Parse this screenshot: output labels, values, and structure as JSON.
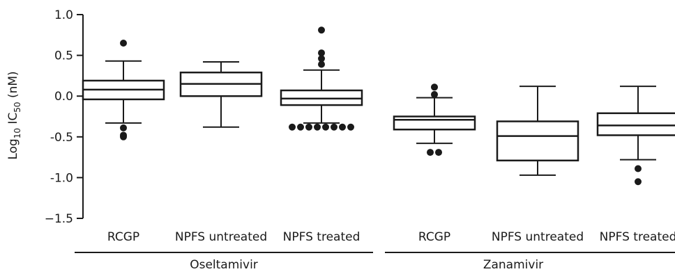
{
  "chart_data": {
    "type": "box",
    "ylabel_main": "Log",
    "ylabel_sub": "10",
    "ylabel_ic": " IC",
    "ylabel_ic_sub": "50",
    "ylabel_unit": " (nM)",
    "ylim": [
      -1.5,
      1.0
    ],
    "yticks": [
      {
        "value": 1.0,
        "label": "1.0"
      },
      {
        "value": 0.5,
        "label": "0.5"
      },
      {
        "value": 0.0,
        "label": "0.0"
      },
      {
        "value": -0.5,
        "label": "-0.5"
      },
      {
        "value": -1.0,
        "label": "-1.0"
      },
      {
        "value": -1.5,
        "label": "−1.5"
      }
    ],
    "groups": [
      {
        "label": "Oseltamivir",
        "categories": [
          "RCGP",
          "NPFS untreated",
          "NPFS treated"
        ]
      },
      {
        "label": "Zanamivir",
        "categories": [
          "RCGP",
          "NPFS untreated",
          "NPFS treated"
        ]
      }
    ],
    "boxes": [
      {
        "group": "Oseltamivir",
        "category": "RCGP",
        "min": -0.33,
        "q1": -0.04,
        "median": 0.08,
        "q3": 0.19,
        "max": 0.43,
        "outliers": [
          0.65,
          -0.39,
          -0.48,
          -0.5
        ]
      },
      {
        "group": "Oseltamivir",
        "category": "NPFS untreated",
        "min": -0.38,
        "q1": 0.0,
        "median": 0.15,
        "q3": 0.29,
        "max": 0.42,
        "outliers": []
      },
      {
        "group": "Oseltamivir",
        "category": "NPFS treated",
        "min": -0.33,
        "q1": -0.11,
        "median": -0.03,
        "q3": 0.07,
        "max": 0.32,
        "outliers": [
          0.81,
          0.53,
          0.46,
          0.39,
          -0.38,
          -0.38,
          -0.38,
          -0.38,
          -0.38,
          -0.38,
          -0.38,
          -0.38
        ]
      },
      {
        "group": "Zanamivir",
        "category": "RCGP",
        "min": -0.58,
        "q1": -0.41,
        "median": -0.29,
        "q3": -0.25,
        "max": -0.02,
        "outliers": [
          0.11,
          0.02,
          -0.69,
          -0.69
        ]
      },
      {
        "group": "Zanamivir",
        "category": "NPFS untreated",
        "min": -0.97,
        "q1": -0.79,
        "median": -0.49,
        "q3": -0.31,
        "max": 0.12,
        "outliers": []
      },
      {
        "group": "Zanamivir",
        "category": "NPFS treated",
        "min": -0.78,
        "q1": -0.48,
        "median": -0.36,
        "q3": -0.21,
        "max": 0.12,
        "outliers": [
          -0.89,
          -1.05
        ]
      }
    ]
  }
}
